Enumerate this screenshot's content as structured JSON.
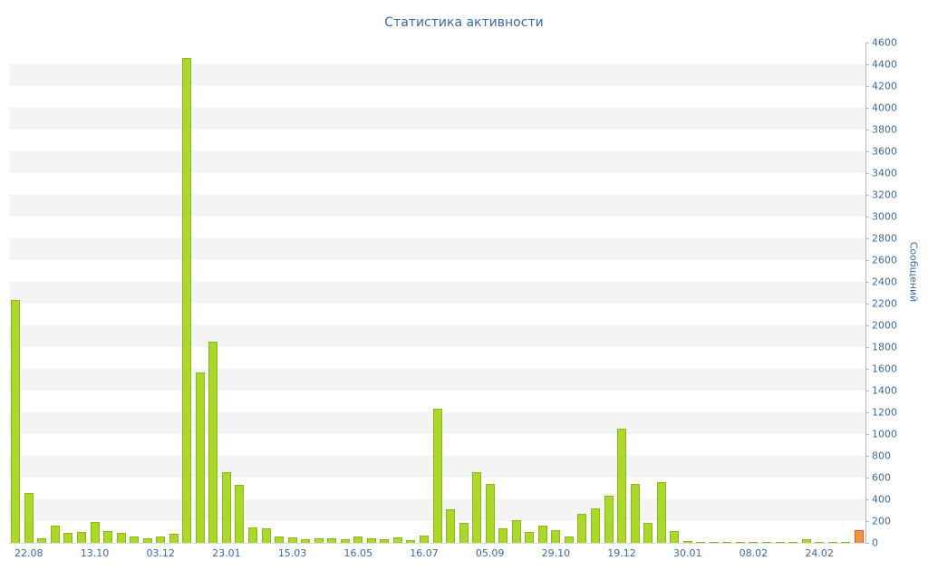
{
  "chart_data": {
    "type": "bar",
    "title": "Статистика активности",
    "ylabel": "Сообщений",
    "xlabel": "",
    "ylim": [
      0,
      4600
    ],
    "ytick_step": 200,
    "yticks": [
      0,
      200,
      400,
      600,
      800,
      1000,
      1200,
      1400,
      1600,
      1800,
      2000,
      2200,
      2400,
      2600,
      2800,
      3000,
      3200,
      3400,
      3600,
      3800,
      4000,
      4200,
      4400,
      4600
    ],
    "values": [
      2230,
      460,
      40,
      160,
      90,
      100,
      190,
      110,
      95,
      60,
      45,
      55,
      80,
      4460,
      1570,
      1850,
      650,
      530,
      140,
      130,
      60,
      50,
      35,
      45,
      40,
      30,
      55,
      45,
      35,
      50,
      25,
      70,
      1230,
      310,
      180,
      650,
      540,
      130,
      210,
      100,
      160,
      120,
      60,
      270,
      320,
      430,
      1050,
      540,
      180,
      560,
      110,
      20,
      12,
      8,
      6,
      10,
      8,
      6,
      10,
      6,
      35,
      8,
      6,
      10,
      120
    ],
    "x_tick_labels": [
      {
        "index": 1,
        "label": "22.08"
      },
      {
        "index": 6,
        "label": "13.10"
      },
      {
        "index": 11,
        "label": "03.12"
      },
      {
        "index": 16,
        "label": "23.01"
      },
      {
        "index": 21,
        "label": "15.03"
      },
      {
        "index": 26,
        "label": "16.05"
      },
      {
        "index": 31,
        "label": "16.07"
      },
      {
        "index": 36,
        "label": "05.09"
      },
      {
        "index": 41,
        "label": "29.10"
      },
      {
        "index": 46,
        "label": "19.12"
      },
      {
        "index": 51,
        "label": "30.01"
      },
      {
        "index": 56,
        "label": "08.02"
      },
      {
        "index": 61,
        "label": "24.02"
      }
    ],
    "grid": "horizontal-stripes",
    "legend": "none",
    "bar_color": "#abd929",
    "bar_border_color": "#8cb51e",
    "highlight_index": 64,
    "highlight_color": "#f0923e",
    "highlight_border_color": "#e25822",
    "text_color": "#3c69a8",
    "stripe_color": "#f4f4f4",
    "axis_line_color": "#b9b9b9"
  }
}
